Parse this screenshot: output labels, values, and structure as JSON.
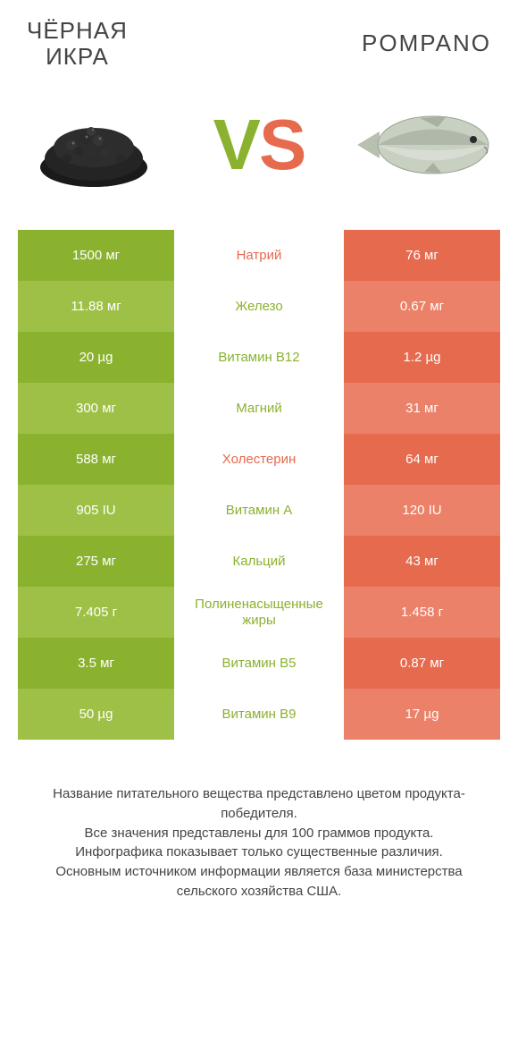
{
  "titles": {
    "left": "ЧЁРНАЯ\nИКРА",
    "right": "POMPANO"
  },
  "vs": {
    "v": "V",
    "s": "S"
  },
  "colors": {
    "left_bg_strong": "#8ab22f",
    "left_bg_alt": "#9ec047",
    "right_bg_strong": "#e66a4e",
    "right_bg_alt": "#ea8168",
    "nutrient_left_win": "#8ab22f",
    "nutrient_right_win": "#e66a4e"
  },
  "rows": [
    {
      "left": "1500 мг",
      "mid": "Натрий",
      "right": "76 мг",
      "winner": "right"
    },
    {
      "left": "11.88 мг",
      "mid": "Железо",
      "right": "0.67 мг",
      "winner": "left"
    },
    {
      "left": "20 µg",
      "mid": "Витамин B12",
      "right": "1.2 µg",
      "winner": "left"
    },
    {
      "left": "300 мг",
      "mid": "Магний",
      "right": "31 мг",
      "winner": "left"
    },
    {
      "left": "588 мг",
      "mid": "Холестерин",
      "right": "64 мг",
      "winner": "right"
    },
    {
      "left": "905 IU",
      "mid": "Витамин A",
      "right": "120 IU",
      "winner": "left"
    },
    {
      "left": "275 мг",
      "mid": "Кальций",
      "right": "43 мг",
      "winner": "left"
    },
    {
      "left": "7.405 г",
      "mid": "Полиненасыщенные жиры",
      "right": "1.458 г",
      "winner": "left"
    },
    {
      "left": "3.5 мг",
      "mid": "Витамин B5",
      "right": "0.87 мг",
      "winner": "left"
    },
    {
      "left": "50 µg",
      "mid": "Витамин B9",
      "right": "17 µg",
      "winner": "left"
    }
  ],
  "footer": "Название питательного вещества представлено цветом продукта-победителя.\nВсе значения представлены для 100 граммов продукта.\nИнфографика показывает только существенные различия.\nОсновным источником информации является база министерства сельского хозяйства США."
}
